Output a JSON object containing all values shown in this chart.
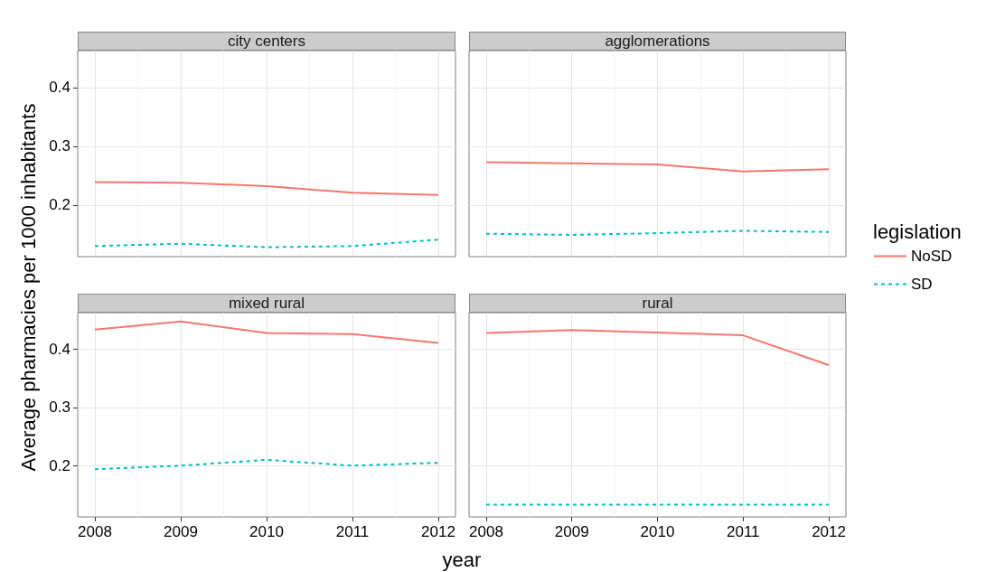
{
  "chart_data": [
    {
      "type": "line",
      "title": "city centers",
      "ylabel": "Average pharmacies per 1000 inhabitants",
      "x": [
        2008,
        2009,
        2010,
        2011,
        2012
      ],
      "xlim": [
        2007.8,
        2012.2
      ],
      "xticks": [
        2008,
        2009,
        2010,
        2011,
        2012
      ],
      "ylim": [
        0.112,
        0.463
      ],
      "yticks": [
        0.2,
        0.3,
        0.4
      ],
      "grid": true,
      "tick_labels": "y",
      "series": [
        {
          "color": "#f8766d",
          "line_style": "solid",
          "values": [
            0.239,
            0.238,
            0.232,
            0.221,
            0.217
          ]
        },
        {
          "color": "#00bfc4",
          "line_style": "dashed",
          "values": [
            0.13,
            0.134,
            0.128,
            0.13,
            0.141
          ]
        }
      ]
    },
    {
      "type": "line",
      "title": "agglomerations",
      "x": [
        2008,
        2009,
        2010,
        2011,
        2012
      ],
      "xlim": [
        2007.8,
        2012.2
      ],
      "xticks": [
        2008,
        2009,
        2010,
        2011,
        2012
      ],
      "ylim": [
        0.112,
        0.463
      ],
      "yticks": [
        0.2,
        0.3,
        0.4
      ],
      "grid": true,
      "tick_labels": false,
      "legend": "right",
      "legend_title": "legislation",
      "series": [
        {
          "name": "NoSD",
          "color": "#f8766d",
          "line_style": "solid",
          "values": [
            0.273,
            0.271,
            0.269,
            0.257,
            0.261
          ]
        },
        {
          "name": "SD",
          "color": "#00bfc4",
          "line_style": "dashed",
          "values": [
            0.151,
            0.149,
            0.152,
            0.156,
            0.154
          ]
        }
      ]
    },
    {
      "type": "line",
      "title": "mixed rural",
      "xlabel": "year",
      "x": [
        2008,
        2009,
        2010,
        2011,
        2012
      ],
      "xlim": [
        2007.8,
        2012.2
      ],
      "xticks": [
        2008,
        2009,
        2010,
        2011,
        2012
      ],
      "ylim": [
        0.112,
        0.463
      ],
      "yticks": [
        0.2,
        0.3,
        0.4
      ],
      "grid": true,
      "series": [
        {
          "color": "#f8766d",
          "line_style": "solid",
          "values": [
            0.434,
            0.448,
            0.428,
            0.426,
            0.411
          ]
        },
        {
          "color": "#00bfc4",
          "line_style": "dashed",
          "values": [
            0.194,
            0.2,
            0.21,
            0.2,
            0.205
          ]
        }
      ]
    },
    {
      "type": "line",
      "title": "rural",
      "x": [
        2008,
        2009,
        2010,
        2011,
        2012
      ],
      "xlim": [
        2007.8,
        2012.2
      ],
      "xticks": [
        2008,
        2009,
        2010,
        2011,
        2012
      ],
      "ylim": [
        0.112,
        0.463
      ],
      "yticks": [
        0.2,
        0.3,
        0.4
      ],
      "grid": true,
      "tick_labels": "x",
      "series": [
        {
          "color": "#f8766d",
          "line_style": "solid",
          "values": [
            0.428,
            0.433,
            0.429,
            0.424,
            0.373
          ]
        },
        {
          "color": "#00bfc4",
          "line_style": "dashed",
          "values": [
            0.133,
            0.133,
            0.133,
            0.133,
            0.133
          ]
        }
      ]
    }
  ]
}
